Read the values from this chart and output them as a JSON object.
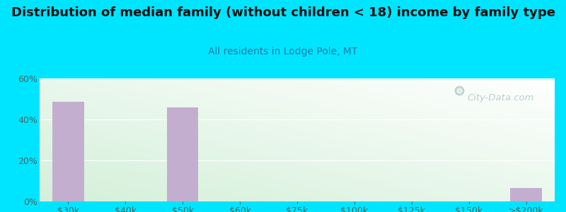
{
  "title": "Distribution of median family (without children < 18) income by family type",
  "subtitle": "All residents in Lodge Pole, MT",
  "categories": [
    "$30k",
    "$40k",
    "$50k",
    "$60k",
    "$75k",
    "$100k",
    "$125k",
    "$150k",
    ">$200k"
  ],
  "values": [
    48.5,
    0,
    46.0,
    0,
    0,
    0,
    0,
    0,
    6.5
  ],
  "bar_color": "#c4aed0",
  "title_color": "#111111",
  "subtitle_color": "#2277aa",
  "axis_tick_color": "#446666",
  "background_outer": "#00e5ff",
  "ylim": [
    0,
    60
  ],
  "yticks": [
    0,
    20,
    40,
    60
  ],
  "ytick_labels": [
    "0%",
    "20%",
    "40%",
    "60%"
  ],
  "title_fontsize": 13,
  "subtitle_fontsize": 10,
  "tick_fontsize": 9,
  "watermark": "City-Data.com"
}
